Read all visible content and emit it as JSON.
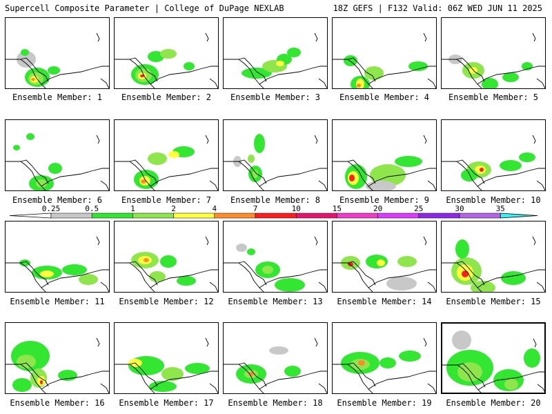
{
  "header": {
    "left": "Supercell Composite Parameter | College of DuPage NEXLAB",
    "right": "18Z GEFS | F132 Valid: 06Z WED JUN 11 2025"
  },
  "legend": {
    "levels": [
      "0.25",
      "0.5",
      "1",
      "2",
      "4",
      "7",
      "10",
      "15",
      "20",
      "25",
      "30",
      "35"
    ],
    "colors": [
      "#c8c8c8",
      "#32e632",
      "#8ee64c",
      "#ffff3c",
      "#ff8c28",
      "#ff1e1e",
      "#e6146e",
      "#f03cc8",
      "#dc3cff",
      "#8c28e6",
      "#b464e6",
      "#3cf0f0"
    ]
  },
  "panels": [
    {
      "label": "Ensemble Member: 1"
    },
    {
      "label": "Ensemble Member: 2"
    },
    {
      "label": "Ensemble Member: 3"
    },
    {
      "label": "Ensemble Member: 4"
    },
    {
      "label": "Ensemble Member: 5"
    },
    {
      "label": "Ensemble Member: 6"
    },
    {
      "label": "Ensemble Member: 7"
    },
    {
      "label": "Ensemble Member: 8"
    },
    {
      "label": "Ensemble Member: 9"
    },
    {
      "label": "Ensemble Member: 10"
    },
    {
      "label": "Ensemble Member: 11"
    },
    {
      "label": "Ensemble Member: 12"
    },
    {
      "label": "Ensemble Member: 13"
    },
    {
      "label": "Ensemble Member: 14"
    },
    {
      "label": "Ensemble Member: 15"
    },
    {
      "label": "Ensemble Member: 16"
    },
    {
      "label": "Ensemble Member: 17"
    },
    {
      "label": "Ensemble Member: 18"
    },
    {
      "label": "Ensemble Member: 19"
    },
    {
      "label": "Ensemble Member: 20"
    }
  ]
}
